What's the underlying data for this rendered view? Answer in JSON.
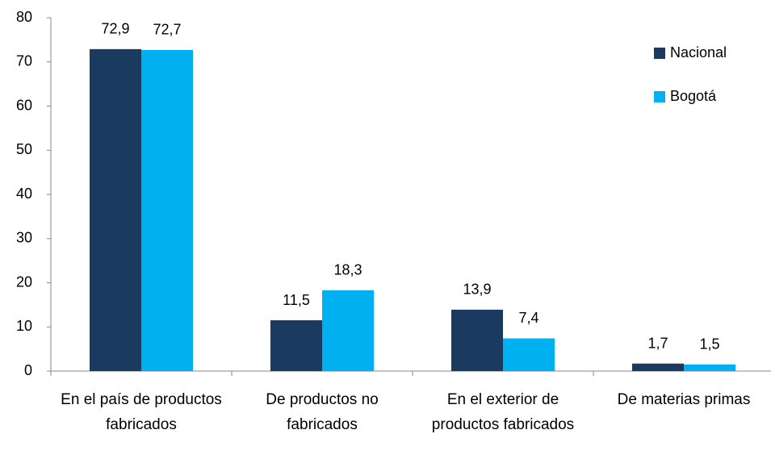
{
  "chart_data": {
    "type": "bar",
    "categories": [
      "En el país de productos fabricados",
      "De productos no fabricados",
      "En el exterior de productos fabricados",
      "De materias primas"
    ],
    "series": [
      {
        "name": "Nacional",
        "color": "#1b3a5f",
        "values": [
          72.9,
          11.5,
          13.9,
          1.7
        ],
        "value_labels": [
          "72,9",
          "11,5",
          "13,9",
          "1,7"
        ]
      },
      {
        "name": "Bogotá",
        "color": "#00b0f0",
        "values": [
          72.7,
          18.3,
          7.4,
          1.5
        ],
        "value_labels": [
          "72,7",
          "18,3",
          "7,4",
          "1,5"
        ]
      }
    ],
    "ylim": [
      0,
      80
    ],
    "yticks": [
      0,
      10,
      20,
      30,
      40,
      50,
      60,
      70,
      80
    ],
    "legend": "top-right"
  }
}
